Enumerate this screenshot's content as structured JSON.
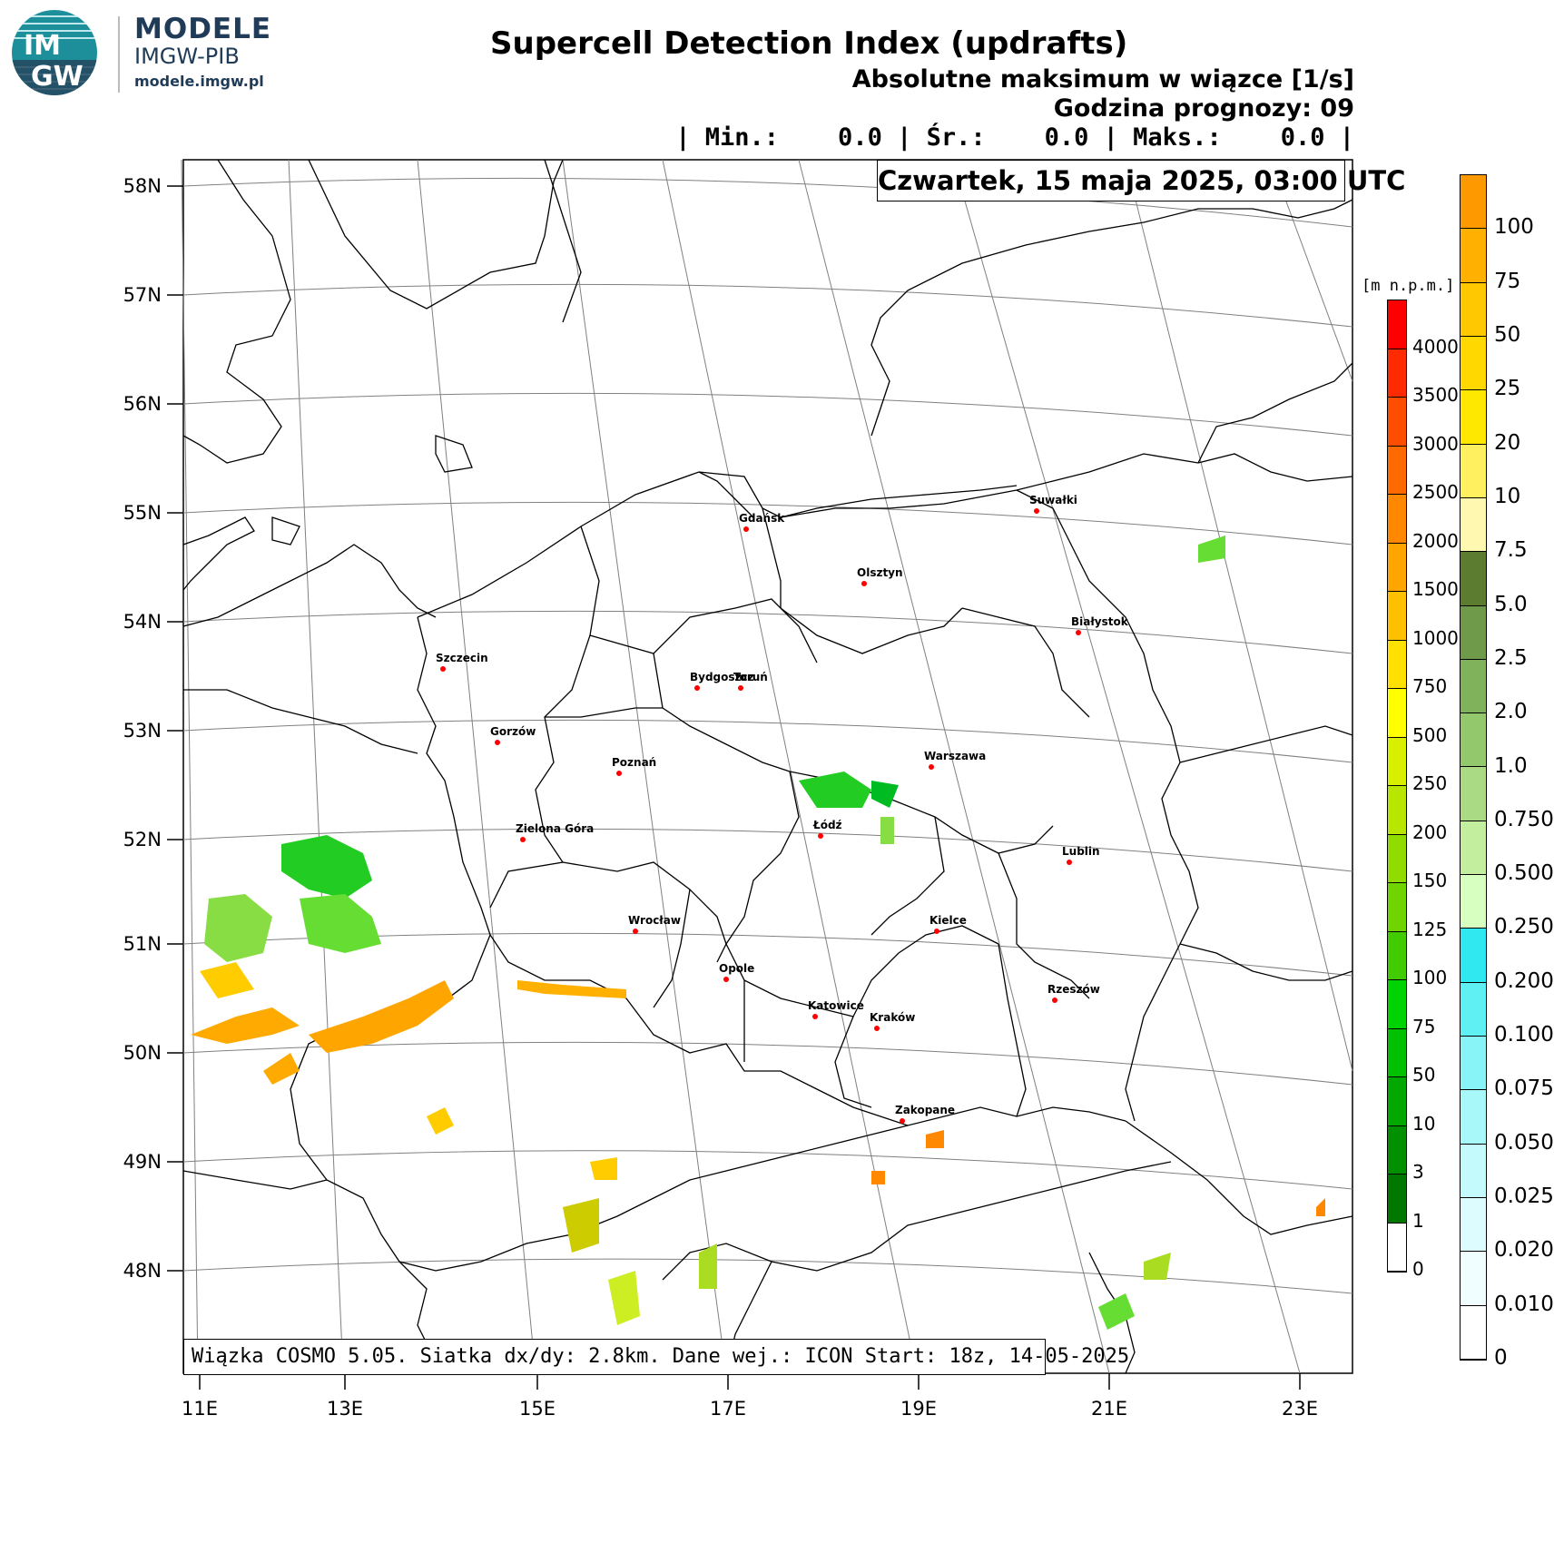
{
  "header": {
    "title": "Supercell Detection Index (updrafts)",
    "subtitle": "Absolutne maksimum w wiązce [1/s]",
    "forecast_hour": "Godzina prognozy: 09",
    "stats": "| Min.:    0.0 | Śr.:    0.0 | Maks.:    0.0 |",
    "date": "Czwartek, 15 maja 2025, 03:00 UTC"
  },
  "logo": {
    "mark_top": "IM",
    "mark_bottom": "GW",
    "line1": "MODELE",
    "line2": "IMGW-PIB",
    "line3": "modele.imgw.pl",
    "color": "#1f3b57"
  },
  "footer": "Wiązka COSMO 5.05. Siatka dx/dy: 2.8km. Dane wej.: ICON Start: 18z, 14-05-2025",
  "axes": {
    "lat_labels": [
      "58N",
      "57N",
      "56N",
      "55N",
      "54N",
      "53N",
      "52N",
      "51N",
      "50N",
      "49N",
      "48N"
    ],
    "lon_labels": [
      "11E",
      "13E",
      "15E",
      "17E",
      "19E",
      "21E",
      "23E"
    ]
  },
  "cities": [
    {
      "name": "Gdańsk"
    },
    {
      "name": "Suwałki"
    },
    {
      "name": "Olsztyn"
    },
    {
      "name": "Białystok"
    },
    {
      "name": "Szczecin"
    },
    {
      "name": "Bydgoszcz"
    },
    {
      "name": "Toruń"
    },
    {
      "name": "Gorzów"
    },
    {
      "name": "Poznań"
    },
    {
      "name": "Warszawa"
    },
    {
      "name": "Zielona Góra"
    },
    {
      "name": "Łódź"
    },
    {
      "name": "Lublin"
    },
    {
      "name": "Wrocław"
    },
    {
      "name": "Kielce"
    },
    {
      "name": "Opole"
    },
    {
      "name": "Rzeszów"
    },
    {
      "name": "Katowice"
    },
    {
      "name": "Kraków"
    },
    {
      "name": "Zakopane"
    }
  ],
  "terrain_scale": {
    "unit": "[m n.p.m.]",
    "labels": [
      "4000",
      "3500",
      "3000",
      "2500",
      "2000",
      "1500",
      "1000",
      "750",
      "500",
      "250",
      "200",
      "150",
      "125",
      "100",
      "75",
      "50",
      "10",
      "3",
      "1",
      "0"
    ],
    "colors": [
      "#ff0000",
      "#ff2a00",
      "#ff4d00",
      "#ff6a00",
      "#ff8800",
      "#ffa500",
      "#ffc000",
      "#ffe000",
      "#ffff00",
      "#d8f000",
      "#b8e600",
      "#90dc00",
      "#6fd400",
      "#40cc00",
      "#00d400",
      "#00c000",
      "#00a800",
      "#009000",
      "#007800",
      "#ffffff"
    ]
  },
  "sdi_scale": {
    "labels": [
      "100",
      "75",
      "50",
      "25",
      "20",
      "10",
      "7.5",
      "5.0",
      "2.5",
      "2.0",
      "1.0",
      "0.750",
      "0.500",
      "0.250",
      "0.200",
      "0.100",
      "0.075",
      "0.050",
      "0.025",
      "0.020",
      "0.010",
      "0"
    ],
    "colors": [
      "#ff9900",
      "#ffb000",
      "#ffc800",
      "#ffd800",
      "#ffe800",
      "#fff060",
      "#fff8b0",
      "#5c7c30",
      "#6f9a4a",
      "#7fb25a",
      "#94c86c",
      "#aadb84",
      "#c3ee9e",
      "#d6ffc0",
      "#30e8f0",
      "#5ff0f4",
      "#88f4f8",
      "#a8f8fa",
      "#c4fafc",
      "#dcfcfe",
      "#f0feff",
      "#ffffff"
    ]
  },
  "map_colors": {
    "border": "#000000",
    "grid": "#808080",
    "city_dot": "#ff0000"
  }
}
